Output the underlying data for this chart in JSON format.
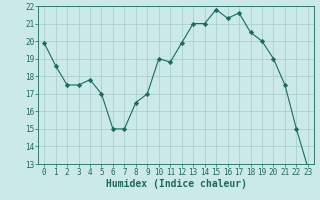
{
  "x": [
    0,
    1,
    2,
    3,
    4,
    5,
    6,
    7,
    8,
    9,
    10,
    11,
    12,
    13,
    14,
    15,
    16,
    17,
    18,
    19,
    20,
    21,
    22,
    23
  ],
  "y": [
    19.9,
    18.6,
    17.5,
    17.5,
    17.8,
    17.0,
    15.0,
    15.0,
    16.5,
    17.0,
    19.0,
    18.8,
    19.9,
    21.0,
    21.0,
    21.8,
    21.3,
    21.6,
    20.5,
    20.0,
    19.0,
    17.5,
    15.0,
    12.8
  ],
  "line_color": "#1a6b5a",
  "marker": "D",
  "marker_size": 2.2,
  "bg_color": "#cce9e9",
  "grid_color": "#aacfcf",
  "xlabel": "Humidex (Indice chaleur)",
  "xlim": [
    -0.5,
    23.5
  ],
  "ylim": [
    13,
    22
  ],
  "yticks": [
    13,
    14,
    15,
    16,
    17,
    18,
    19,
    20,
    21,
    22
  ],
  "xticks": [
    0,
    1,
    2,
    3,
    4,
    5,
    6,
    7,
    8,
    9,
    10,
    11,
    12,
    13,
    14,
    15,
    16,
    17,
    18,
    19,
    20,
    21,
    22,
    23
  ],
  "tick_color": "#1a6b5a",
  "tick_fontsize": 5.5,
  "xlabel_fontsize": 7.0,
  "label_color": "#1a6b5a"
}
